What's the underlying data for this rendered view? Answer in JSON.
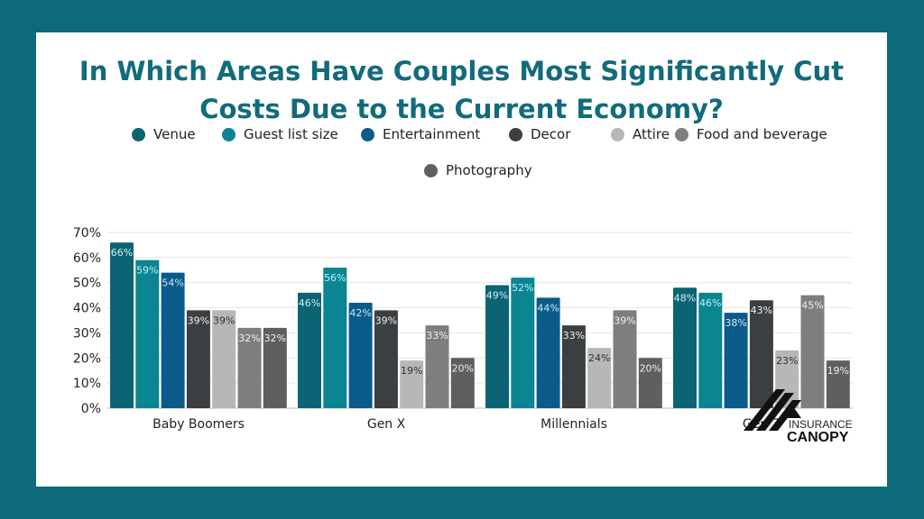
{
  "title_line1": "In Which Areas Have Couples Most Significantly Cut",
  "title_line2": "Costs Due to the Current Economy?",
  "logo_text": [
    "INSURANCE",
    "CANOPY"
  ],
  "chart_data": {
    "type": "bar",
    "title": "In Which Areas Have Couples Most Significantly Cut Costs Due to the Current Economy?",
    "categories": [
      "Baby Boomers",
      "Gen X",
      "Millennials",
      "Gen Z"
    ],
    "series": [
      {
        "name": "Venue",
        "color": "#0b6474",
        "label_color": "#cfeef3",
        "values": [
          66,
          46,
          49,
          48
        ]
      },
      {
        "name": "Guest list size",
        "color": "#0a8591",
        "label_color": "#bff3f7",
        "values": [
          59,
          56,
          52,
          46
        ]
      },
      {
        "name": "Entertainment",
        "color": "#0a5b8a",
        "label_color": "#cde8f7",
        "values": [
          54,
          42,
          44,
          38
        ]
      },
      {
        "name": "Decor",
        "color": "#3c3f42",
        "label_color": "#eeeeee",
        "values": [
          39,
          39,
          33,
          43
        ]
      },
      {
        "name": "Attire",
        "color": "#b7b7b7",
        "label_color": "#333333",
        "values": [
          39,
          19,
          24,
          23
        ]
      },
      {
        "name": "Food and beverage",
        "color": "#7e7e7e",
        "label_color": "#f0f0f0",
        "values": [
          32,
          33,
          39,
          45
        ]
      },
      {
        "name": "Photography",
        "color": "#5d5f61",
        "label_color": "#eeeeee",
        "values": [
          32,
          20,
          20,
          19
        ]
      }
    ],
    "yticks": [
      "0%",
      "10%",
      "20%",
      "30%",
      "40%",
      "50%",
      "60%",
      "70%"
    ],
    "ylim": [
      0,
      70
    ],
    "grid": true,
    "legend": "top",
    "data_labels": true
  }
}
